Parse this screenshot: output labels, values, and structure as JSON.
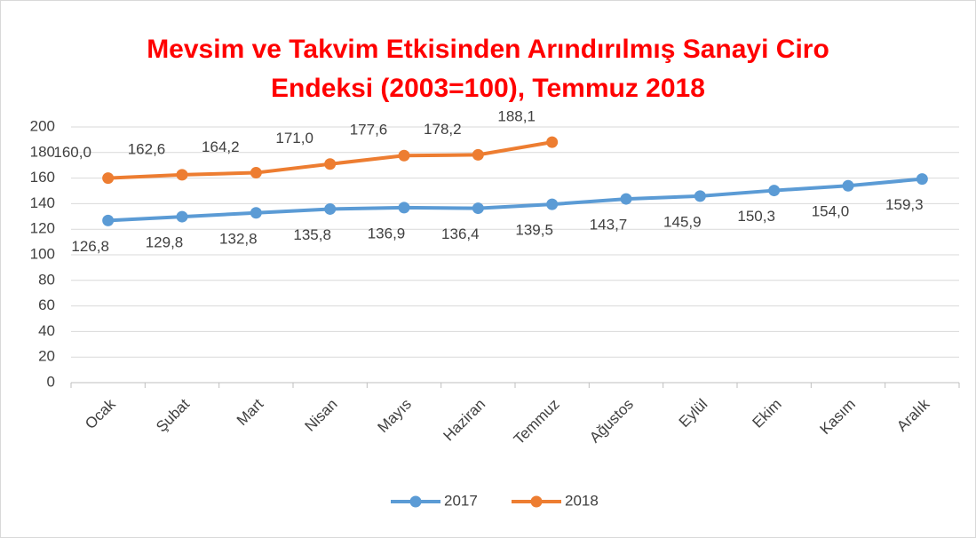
{
  "chart_data": {
    "type": "line",
    "title": "Mevsim ve Takvim Etkisinden Arındırılmış Sanayi Ciro Endeksi (2003=100), Temmuz 2018",
    "categories": [
      "Ocak",
      "Şubat",
      "Mart",
      "Nisan",
      "Mayıs",
      "Haziran",
      "Temmuz",
      "Ağustos",
      "Eylül",
      "Ekim",
      "Kasım",
      "Aralık"
    ],
    "series": [
      {
        "name": "2017",
        "color": "#5b9bd5",
        "values": [
          126.8,
          129.8,
          132.8,
          135.8,
          136.9,
          136.4,
          139.5,
          143.7,
          145.9,
          150.3,
          154.0,
          159.3
        ],
        "value_labels": [
          "126,8",
          "129,8",
          "132,8",
          "135,8",
          "136,9",
          "136,4",
          "139,5",
          "143,7",
          "145,9",
          "150,3",
          "154,0",
          "159,3"
        ]
      },
      {
        "name": "2018",
        "color": "#ed7d31",
        "values": [
          160.0,
          162.6,
          164.2,
          171.0,
          177.6,
          178.2,
          188.1,
          null,
          null,
          null,
          null,
          null
        ],
        "value_labels": [
          "160,0",
          "162,6",
          "164,2",
          "171,0",
          "177,6",
          "178,2",
          "188,1",
          null,
          null,
          null,
          null,
          null
        ]
      }
    ],
    "ylim": [
      0,
      200
    ],
    "yticks": [
      0,
      20,
      40,
      60,
      80,
      100,
      120,
      140,
      160,
      180,
      200
    ],
    "grid": true,
    "legend": "bottom"
  }
}
